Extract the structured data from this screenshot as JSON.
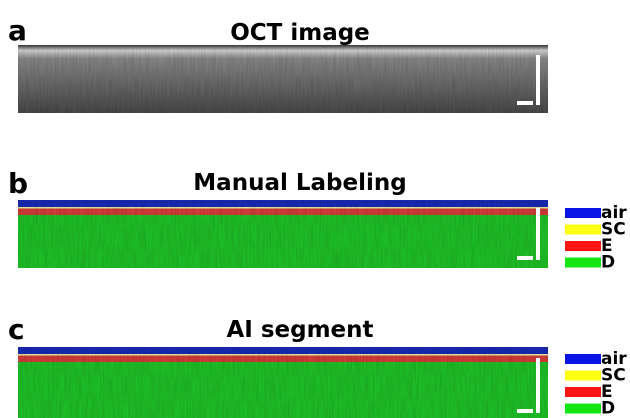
{
  "panels": [
    {
      "label": "a",
      "title": "OCT image"
    },
    {
      "label": "b",
      "title": "Manual Labeling",
      "legend": [
        {
          "name": "air",
          "color": "#0a14e6"
        },
        {
          "name": "SC",
          "color": "#ffff14"
        },
        {
          "name": "E",
          "color": "#ff1414"
        },
        {
          "name": "D",
          "color": "#14e614"
        }
      ]
    },
    {
      "label": "c",
      "title": "AI segment",
      "legend": [
        {
          "name": "air",
          "color": "#0a14e6"
        },
        {
          "name": "SC",
          "color": "#ffff14"
        },
        {
          "name": "E",
          "color": "#ff1414"
        },
        {
          "name": "D",
          "color": "#14e614"
        }
      ]
    }
  ]
}
